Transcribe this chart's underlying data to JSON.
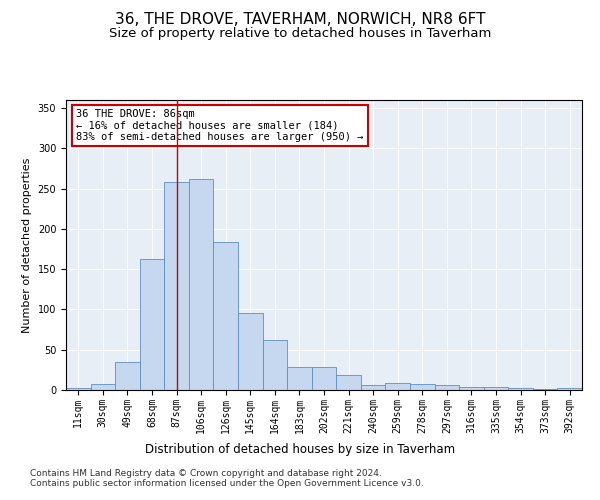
{
  "title": "36, THE DROVE, TAVERHAM, NORWICH, NR8 6FT",
  "subtitle": "Size of property relative to detached houses in Taverham",
  "xlabel": "Distribution of detached houses by size in Taverham",
  "ylabel": "Number of detached properties",
  "categories": [
    "11sqm",
    "30sqm",
    "49sqm",
    "68sqm",
    "87sqm",
    "106sqm",
    "126sqm",
    "145sqm",
    "164sqm",
    "183sqm",
    "202sqm",
    "221sqm",
    "240sqm",
    "259sqm",
    "278sqm",
    "297sqm",
    "316sqm",
    "335sqm",
    "354sqm",
    "373sqm",
    "392sqm"
  ],
  "values": [
    2,
    8,
    35,
    163,
    258,
    262,
    184,
    96,
    62,
    28,
    28,
    19,
    6,
    9,
    7,
    6,
    4,
    4,
    2,
    1,
    3
  ],
  "bar_color": "#c5d8f0",
  "bar_edge_color": "#5b8ec7",
  "vline_x_idx": 4,
  "vline_color": "#cc0000",
  "annotation_text": "36 THE DROVE: 86sqm\n← 16% of detached houses are smaller (184)\n83% of semi-detached houses are larger (950) →",
  "annotation_box_color": "#ffffff",
  "annotation_box_edge": "#cc0000",
  "ylim": [
    0,
    360
  ],
  "yticks": [
    0,
    50,
    100,
    150,
    200,
    250,
    300,
    350
  ],
  "footer1": "Contains HM Land Registry data © Crown copyright and database right 2024.",
  "footer2": "Contains public sector information licensed under the Open Government Licence v3.0.",
  "plot_background": "#e8eef5",
  "title_fontsize": 11,
  "subtitle_fontsize": 9.5,
  "ylabel_fontsize": 8,
  "xlabel_fontsize": 8.5,
  "tick_fontsize": 7,
  "annotation_fontsize": 7.5,
  "footer_fontsize": 6.5
}
